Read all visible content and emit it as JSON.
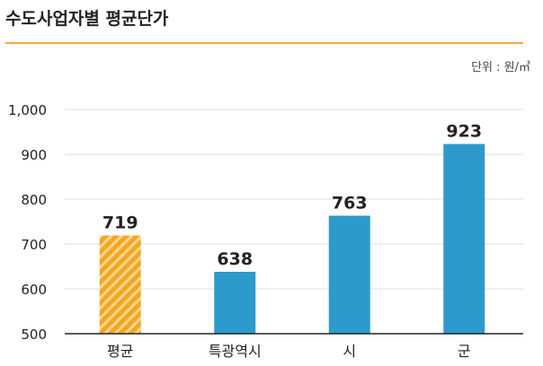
{
  "title": "수도사업자별 평균단가",
  "unit_label": "단위 : 원/㎥",
  "colors": {
    "accent_line": "#f2a93b",
    "average_bar": "#f5a623",
    "average_bar_stripe": "#ffd891",
    "bar": "#2c9acb",
    "gridline": "#dcdcdc",
    "axis": "#222222"
  },
  "chart_data": {
    "type": "bar",
    "title": "수도사업자별 평균단가",
    "xlabel": "",
    "ylabel": "",
    "unit": "원/㎥",
    "categories": [
      "평균",
      "특광역시",
      "시",
      "군"
    ],
    "values": [
      719,
      638,
      763,
      923
    ],
    "value_labels": [
      "719",
      "638",
      "763",
      "923"
    ],
    "highlight": [
      true,
      false,
      false,
      false
    ],
    "ylim": [
      500,
      1000
    ],
    "yticks": [
      500,
      600,
      700,
      800,
      900,
      1000
    ],
    "ytick_labels": [
      "500",
      "600",
      "700",
      "800",
      "900",
      "1,000"
    ],
    "grid": true,
    "legend": "none"
  }
}
